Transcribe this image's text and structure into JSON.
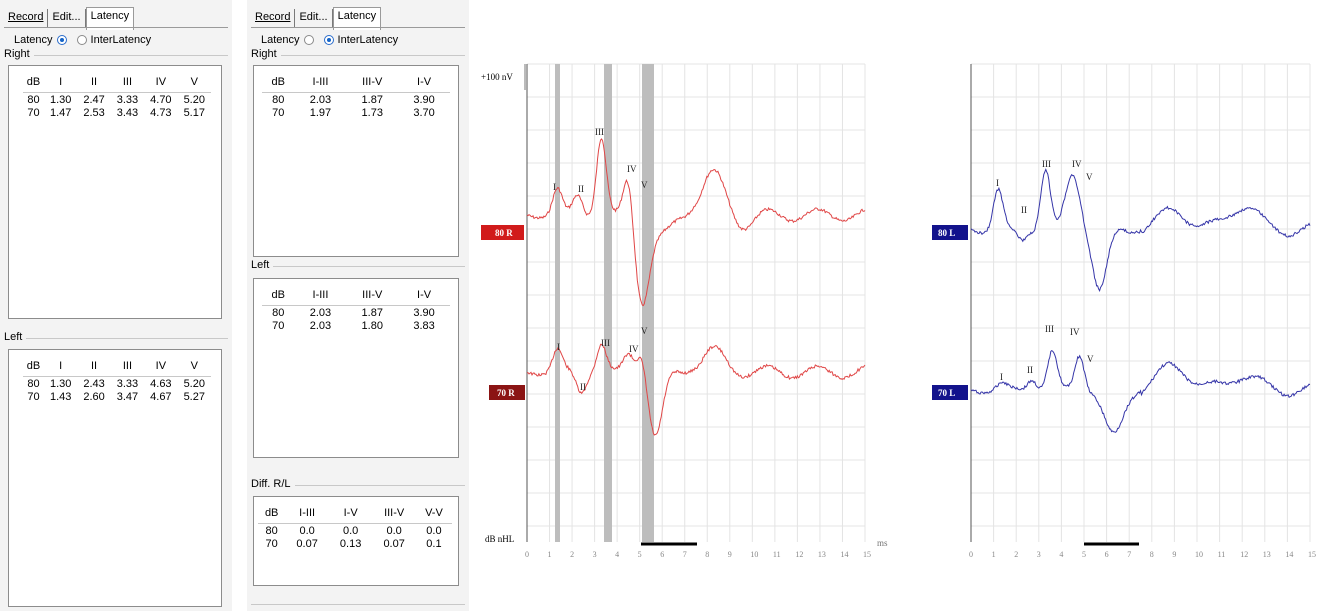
{
  "latency_panel": {
    "tabs": [
      "Record",
      "Edit...",
      "Latency"
    ],
    "radio_latency": "Latency",
    "radio_interlatency": "InterLatency",
    "selected": "Latency",
    "right": {
      "title": "Right",
      "headers": [
        "dB",
        "I",
        "II",
        "III",
        "IV",
        "V"
      ],
      "rows": [
        [
          "80",
          "1.30",
          "2.47",
          "3.33",
          "4.70",
          "5.20"
        ],
        [
          "70",
          "1.47",
          "2.53",
          "3.43",
          "4.73",
          "5.17"
        ]
      ]
    },
    "left": {
      "title": "Left",
      "headers": [
        "dB",
        "I",
        "II",
        "III",
        "IV",
        "V"
      ],
      "rows": [
        [
          "80",
          "1.30",
          "2.43",
          "3.33",
          "4.63",
          "5.20"
        ],
        [
          "70",
          "1.43",
          "2.60",
          "3.47",
          "4.67",
          "5.27"
        ]
      ]
    }
  },
  "interlatency_panel": {
    "tabs": [
      "Record",
      "Edit...",
      "Latency"
    ],
    "radio_latency": "Latency",
    "radio_interlatency": "InterLatency",
    "selected": "InterLatency",
    "right": {
      "title": "Right",
      "headers": [
        "dB",
        "I-III",
        "III-V",
        "I-V"
      ],
      "rows": [
        [
          "80",
          "2.03",
          "1.87",
          "3.90"
        ],
        [
          "70",
          "1.97",
          "1.73",
          "3.70"
        ]
      ]
    },
    "left": {
      "title": "Left",
      "headers": [
        "dB",
        "I-III",
        "III-V",
        "I-V"
      ],
      "rows": [
        [
          "80",
          "2.03",
          "1.87",
          "3.90"
        ],
        [
          "70",
          "2.03",
          "1.80",
          "3.83"
        ]
      ]
    },
    "diff": {
      "title": "Diff. R/L",
      "headers": [
        "dB",
        "I-III",
        "I-V",
        "III-V",
        "V-V"
      ],
      "rows": [
        [
          "80",
          "0.0",
          "0.0",
          "0.0",
          "0.0"
        ],
        [
          "70",
          "0.07",
          "0.13",
          "0.07",
          "0.1"
        ]
      ]
    }
  },
  "graphs": {
    "right": {
      "scale_label": "+100 nV",
      "yaxis_label": "dB nHL",
      "x_unit": "ms",
      "x_ticks": [
        "0",
        "1",
        "2",
        "3",
        "4",
        "5",
        "6",
        "7",
        "8",
        "9",
        "10",
        "11",
        "12",
        "13",
        "14",
        "15"
      ],
      "color": "#e04646",
      "badge_color": "#d11b1b",
      "traces": [
        {
          "badge": "80 R",
          "peaks": [
            "I",
            "II",
            "III",
            "IV",
            "V"
          ]
        },
        {
          "badge": "70 R",
          "peaks": [
            "I",
            "II",
            "III",
            "IV",
            "V"
          ]
        }
      ]
    },
    "left": {
      "x_ticks": [
        "0",
        "1",
        "2",
        "3",
        "4",
        "5",
        "6",
        "7",
        "8",
        "9",
        "10",
        "11",
        "12",
        "13",
        "14",
        "15"
      ],
      "color": "#3535a8",
      "badge_color": "#13138c",
      "traces": [
        {
          "badge": "80 L",
          "peaks": [
            "I",
            "II",
            "III",
            "IV",
            "V"
          ]
        },
        {
          "badge": "70 L",
          "peaks": [
            "I",
            "II",
            "III",
            "IV",
            "V"
          ]
        }
      ]
    }
  }
}
